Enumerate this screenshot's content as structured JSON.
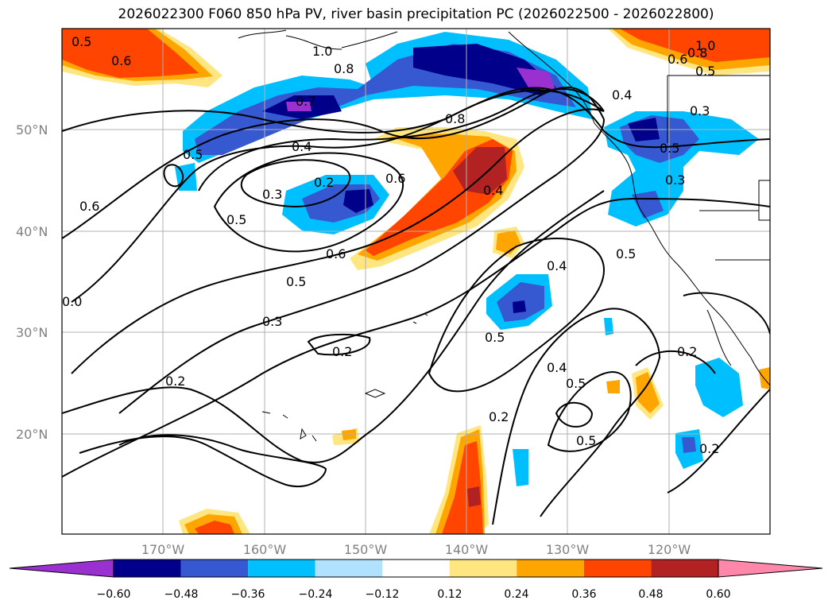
{
  "title": "2026022300 F060 850 hPa PV, river basin precipitation PC (2026022500 - 2026022800)",
  "map": {
    "lat_labels": [
      "50°N",
      "40°N",
      "30°N",
      "20°N"
    ],
    "lon_labels": [
      "170°W",
      "160°W",
      "150°W",
      "140°W",
      "130°W",
      "120°W"
    ]
  },
  "colorbar": {
    "tick_labels": [
      "−0.60",
      "−0.48",
      "−0.36",
      "−0.24",
      "−0.12",
      "0.12",
      "0.24",
      "0.36",
      "0.48",
      "0.60"
    ],
    "colors": [
      "#9b30d0",
      "#00008b",
      "#3658d0",
      "#00bfff",
      "#b0e2ff",
      "#ffffff",
      "#ffe680",
      "#ffa500",
      "#ff4500",
      "#b22222",
      "#ff88aa"
    ]
  },
  "contour_labels": [
    {
      "text": "0.5"
    },
    {
      "text": "0.6"
    },
    {
      "text": "1.0"
    },
    {
      "text": "0.8"
    },
    {
      "text": "0.7"
    },
    {
      "text": "0.4"
    },
    {
      "text": "0.8"
    },
    {
      "text": "0.3"
    },
    {
      "text": "0.2"
    },
    {
      "text": "0.6"
    },
    {
      "text": "0.5"
    },
    {
      "text": "0.6"
    },
    {
      "text": "0.4"
    },
    {
      "text": "0.5"
    },
    {
      "text": "0.3"
    },
    {
      "text": "0.2"
    },
    {
      "text": "0.2"
    },
    {
      "text": "0.6"
    },
    {
      "text": "0.4"
    },
    {
      "text": "0.5"
    },
    {
      "text": "0.4"
    },
    {
      "text": "0.5"
    },
    {
      "text": "0.2"
    },
    {
      "text": "0.5"
    },
    {
      "text": "1.0"
    },
    {
      "text": "0.8"
    },
    {
      "text": "0.6"
    },
    {
      "text": "0.5"
    },
    {
      "text": "0.3"
    },
    {
      "text": "0.4"
    },
    {
      "text": "0.5"
    },
    {
      "text": "0.3"
    },
    {
      "text": "0.5"
    },
    {
      "text": "0.2"
    },
    {
      "text": "0.2"
    },
    {
      "text": "0.5"
    },
    {
      "text": "0.0"
    }
  ]
}
